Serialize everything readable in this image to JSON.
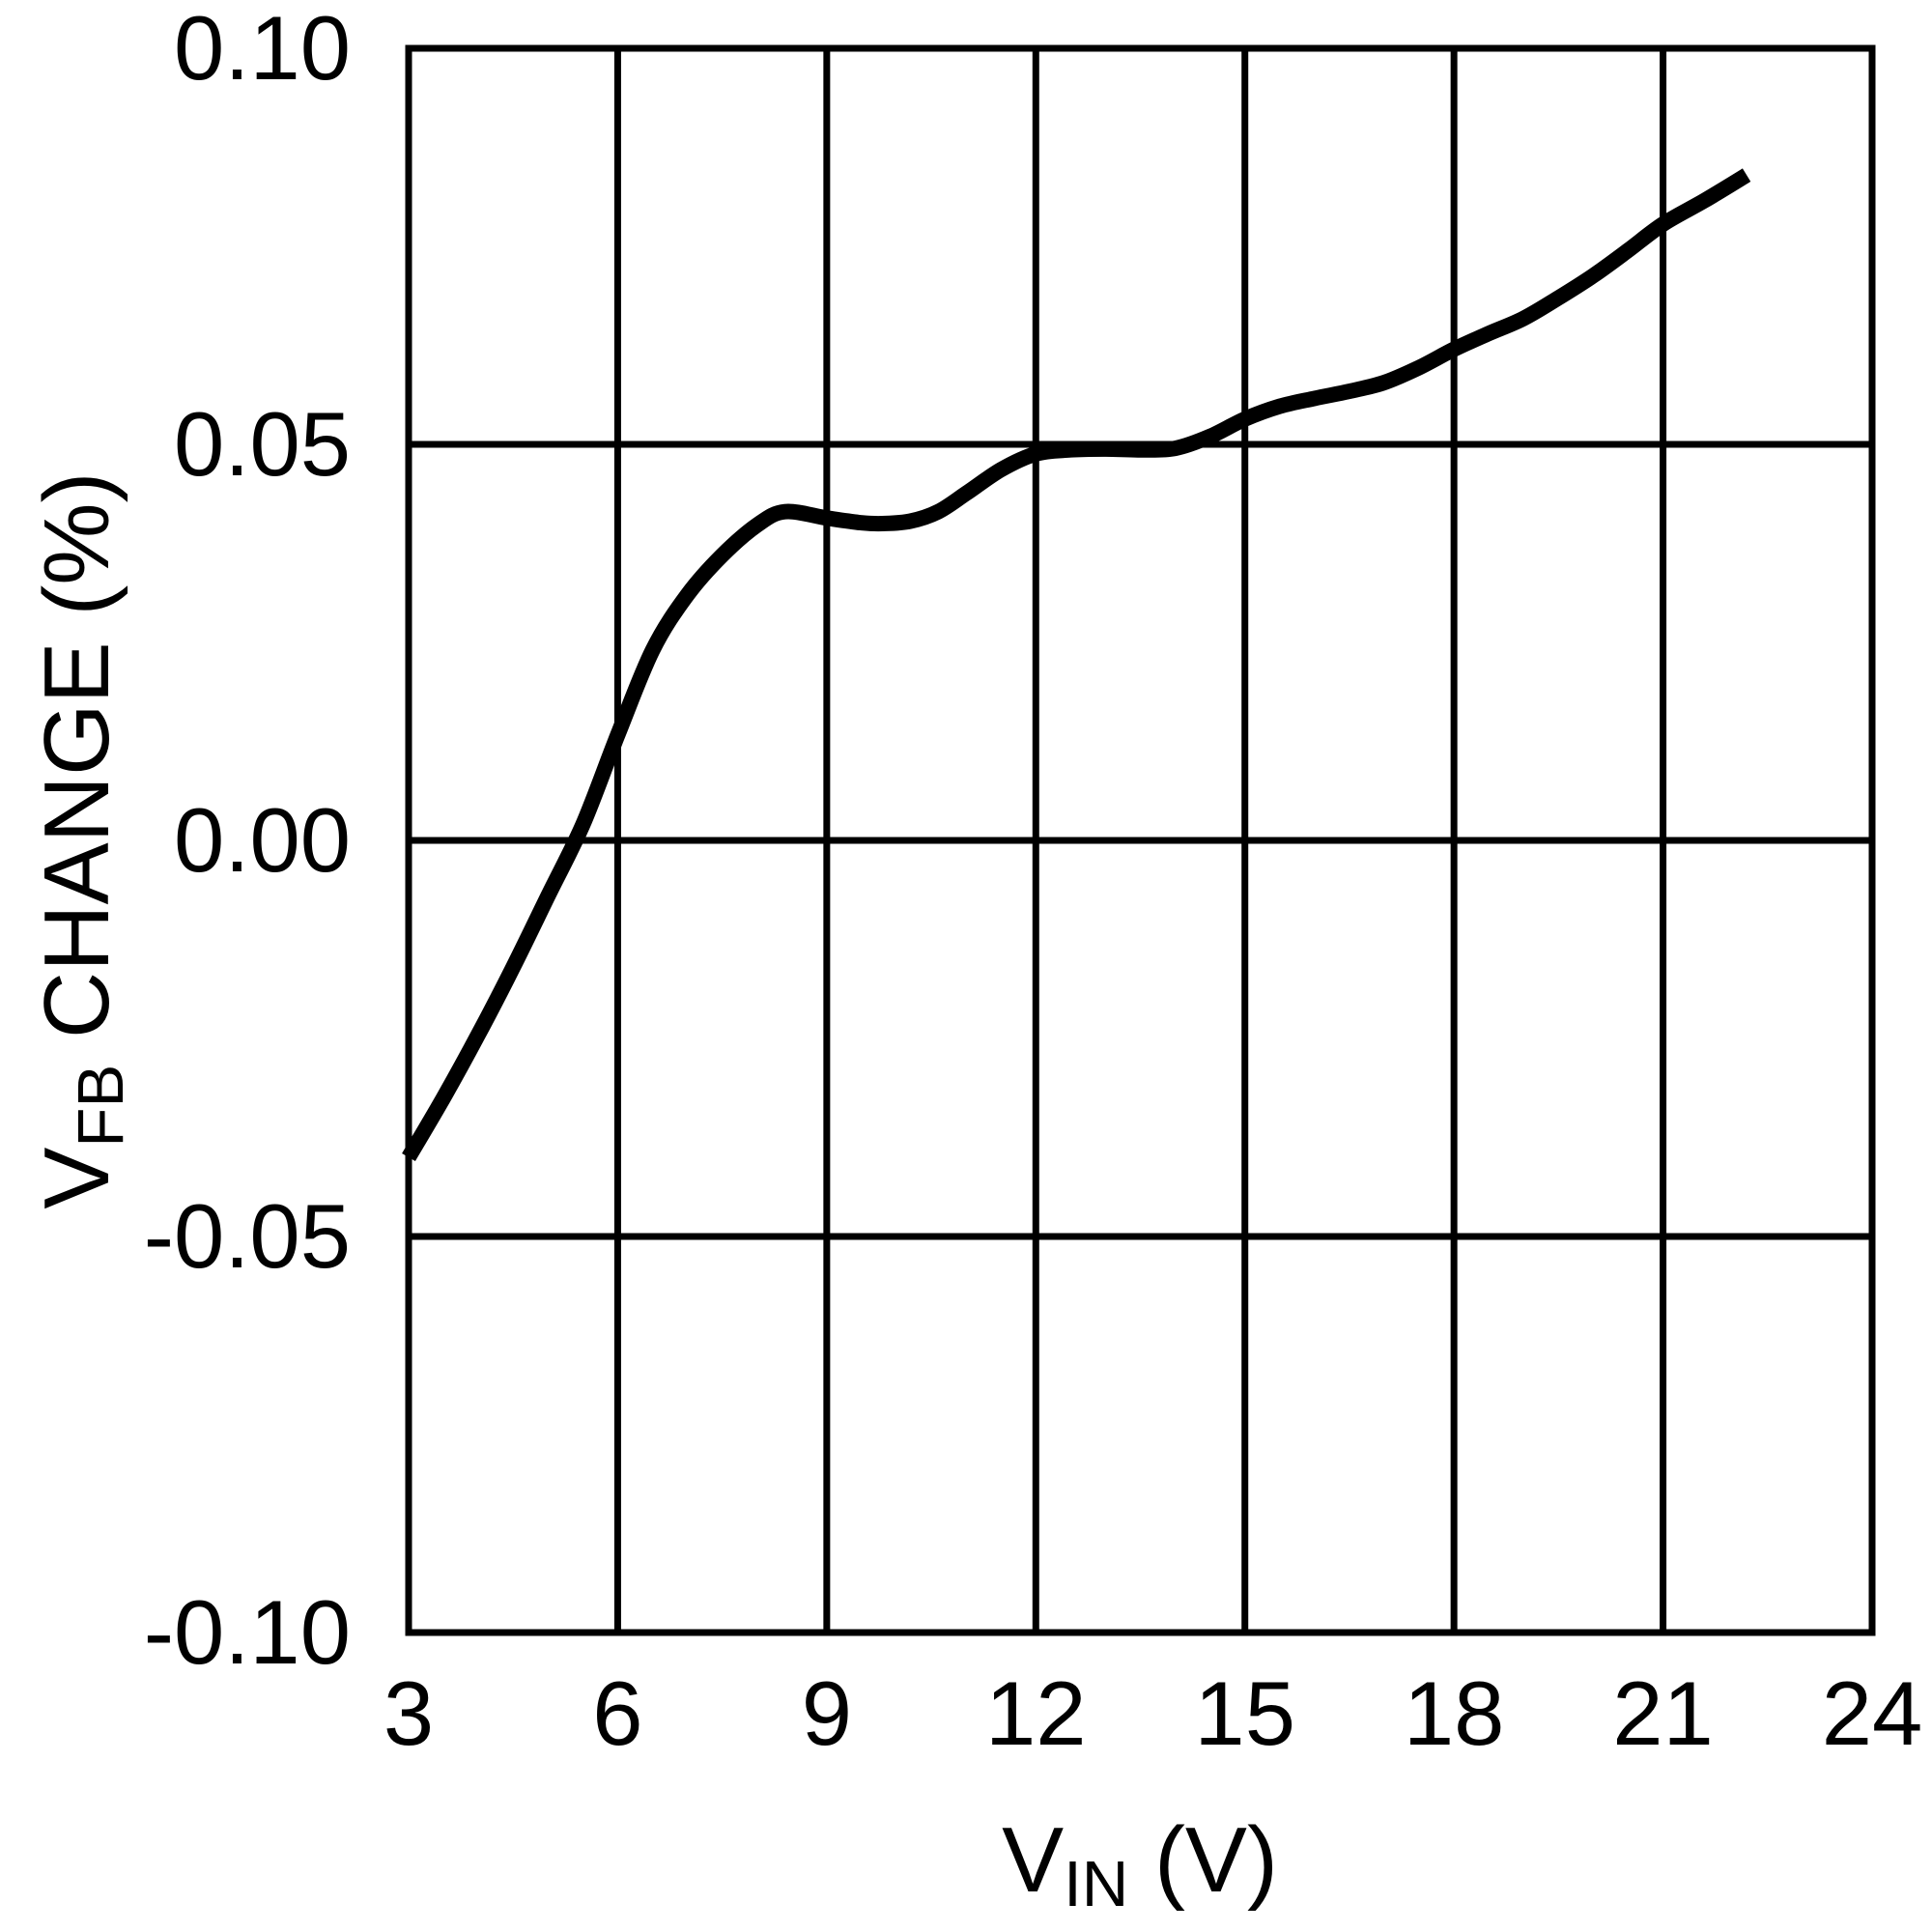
{
  "figure": {
    "background": "#ffffff",
    "line_color": "#000000",
    "grid_color": "#000000",
    "text_color": "#000000"
  },
  "axes": {
    "x": {
      "label_main": "V",
      "label_sub": "IN",
      "label_rest": " (V)",
      "tick_labels": [
        "3",
        "6",
        "9",
        "12",
        "15",
        "18",
        "21",
        "24"
      ]
    },
    "y": {
      "label_main": "V",
      "label_sub": "FB",
      "label_rest": " CHANGE (%)",
      "tick_labels": [
        "0.10",
        "0.05",
        "0.00",
        "-0.05",
        "-0.10"
      ]
    }
  },
  "chart_data": {
    "type": "line",
    "title": "",
    "xlabel": "VIN (V)",
    "ylabel": "VFB CHANGE (%)",
    "xlim": [
      3,
      24
    ],
    "ylim": [
      -0.1,
      0.1
    ],
    "x_ticks": [
      3,
      6,
      9,
      12,
      15,
      18,
      21,
      24
    ],
    "y_ticks": [
      0.1,
      0.05,
      0.0,
      -0.05,
      -0.1
    ],
    "grid": true,
    "legend": false,
    "series": [
      {
        "name": "VFB change",
        "x": [
          3,
          3.5,
          4,
          4.5,
          5,
          5.5,
          6,
          6.5,
          7,
          7.5,
          8,
          8.4,
          9,
          9.5,
          9.8,
          10.2,
          10.6,
          11,
          11.5,
          12,
          12.5,
          13,
          13.5,
          14,
          14.5,
          15,
          15.5,
          16,
          16.5,
          17,
          17.5,
          18,
          18.5,
          19,
          19.5,
          20,
          20.5,
          21,
          21.6,
          22.2
        ],
        "y": [
          -0.04,
          -0.0325,
          -0.0245,
          -0.016,
          -0.007,
          0.002,
          0.0133,
          0.024,
          0.031,
          0.036,
          0.0398,
          0.0415,
          0.0407,
          0.0401,
          0.04,
          0.0403,
          0.0415,
          0.0438,
          0.0468,
          0.0488,
          0.0493,
          0.0494,
          0.0493,
          0.0495,
          0.051,
          0.0532,
          0.0548,
          0.0558,
          0.0567,
          0.0578,
          0.0597,
          0.062,
          0.064,
          0.0659,
          0.0685,
          0.0713,
          0.0745,
          0.0778,
          0.0808,
          0.084
        ]
      }
    ]
  }
}
